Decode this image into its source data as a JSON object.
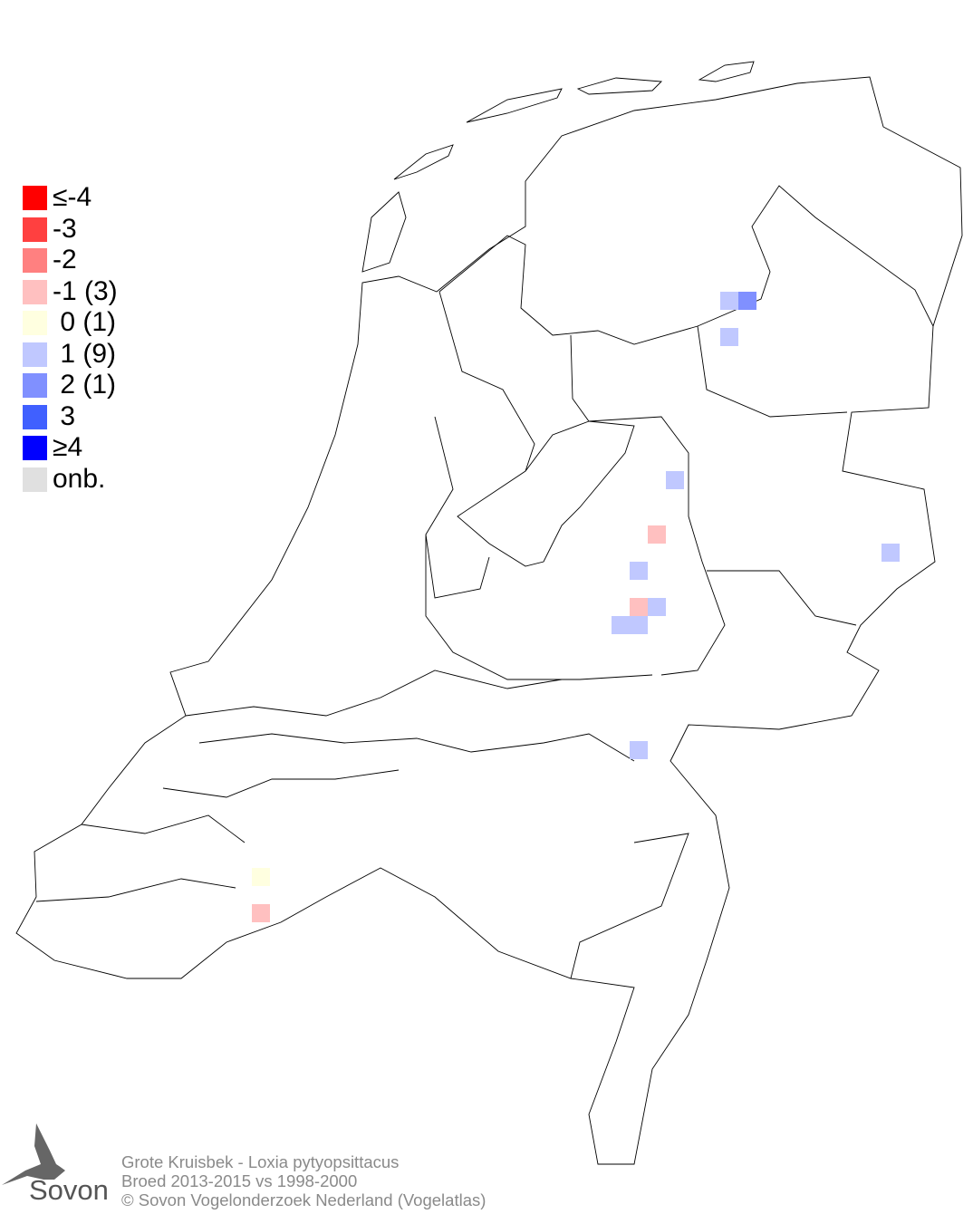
{
  "legend": {
    "items": [
      {
        "label": "≤-4",
        "color": "#ff0000"
      },
      {
        "label": "-3",
        "color": "#ff4040"
      },
      {
        "label": "-2",
        "color": "#ff8080"
      },
      {
        "label": "-1 (3)",
        "color": "#ffc0c0"
      },
      {
        "label": " 0 (1)",
        "color": "#ffffe0"
      },
      {
        "label": " 1 (9)",
        "color": "#c0c8ff"
      },
      {
        "label": " 2 (1)",
        "color": "#8090ff"
      },
      {
        "label": " 3",
        "color": "#4060ff"
      },
      {
        "label": "≥4",
        "color": "#0000ff"
      },
      {
        "label": "onb.",
        "color": "#e0e0e0"
      }
    ]
  },
  "cells": [
    1,
    2,
    1,
    1,
    -1,
    1,
    -1,
    1,
    1,
    1,
    1,
    1,
    0,
    -1
  ],
  "footer": {
    "line1": "Grote Kruisbek - Loxia pytyopsittacus",
    "line2": "Broed 2013-2015 vs 1998-2000",
    "line3": "© Sovon Vogelonderzoek Nederland (Vogelatlas)"
  },
  "logo": {
    "text": "Sovon"
  }
}
